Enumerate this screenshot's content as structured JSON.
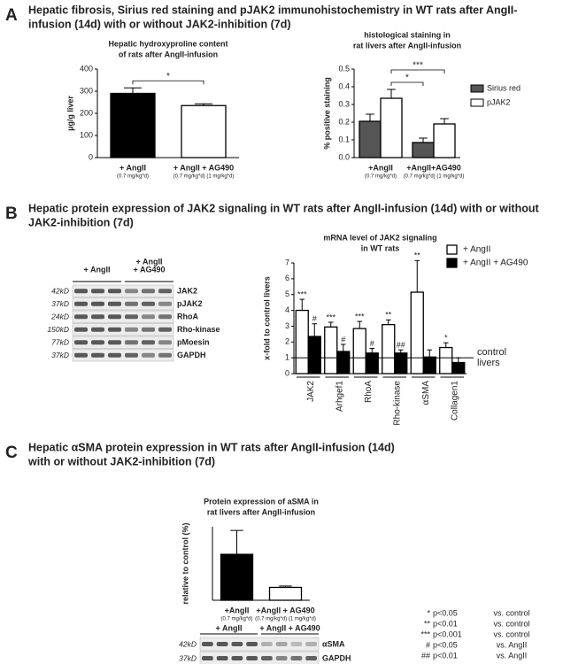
{
  "headings": [
    {
      "letter": "A",
      "lines": [
        "Hepatic fibrosis, Sirius red staining and pJAK2 immunohistochemistry in WT rats after AngII-",
        "infusion (14d) with or without JAK2-inhibition (7d)"
      ]
    },
    {
      "letter": "B",
      "lines": [
        "Hepatic protein expression of JAK2 signaling in WT rats after AngII-infusion (14d) with or without",
        "JAK2-inhibition (7d)"
      ]
    },
    {
      "letter": "C",
      "lines": [
        "Hepatic αSMA protein expression in WT rats after AngII-infusion (14d)",
        "with or without JAK2-inhibition (7d)"
      ]
    }
  ],
  "chart_data": [
    {
      "type": "bar",
      "title": [
        "Hepatic hydroxyproline content",
        "of rats after AngII-infusion"
      ],
      "ylabel": "µg/g liver",
      "categories": [
        "+ AngII",
        "+ AngII + AG490"
      ],
      "category_notes": [
        "(0.7 mg/kg*d)",
        "(0.7 mg/kg*d)  (1 mg/kg*d)"
      ],
      "values": [
        290,
        235
      ],
      "errors": [
        25,
        8
      ],
      "colors": [
        "#000000",
        "#ffffff"
      ],
      "ylim": [
        0,
        400
      ],
      "yticks": [
        0,
        100,
        200,
        300,
        400
      ],
      "annotations": [
        "*"
      ]
    },
    {
      "type": "bar",
      "title": [
        "histological staining in",
        "rat livers after AngII-infusion"
      ],
      "ylabel": "% positive staining",
      "categories": [
        "+AngII",
        "+AngII+AG490"
      ],
      "category_notes": [
        "(0.7 mg/kg*d)",
        "(0.7 mg/kg*d) (1 mg/kg*d)"
      ],
      "series": [
        {
          "name": "Sirius red",
          "color": "#555555",
          "values": [
            0.205,
            0.085
          ],
          "errors": [
            0.04,
            0.025
          ]
        },
        {
          "name": "pJAK2",
          "color": "#ffffff",
          "values": [
            0.335,
            0.19
          ],
          "errors": [
            0.05,
            0.03
          ]
        }
      ],
      "ylim": [
        0,
        0.5
      ],
      "yticks": [
        {
          "value": 0,
          "label": "0.0"
        },
        0.1,
        0.2,
        0.3,
        0.4,
        0.5
      ],
      "annotations": [
        "*",
        "***"
      ]
    },
    {
      "type": "bar",
      "title": [
        "mRNA level of JAK2 signaling",
        "in WT rats"
      ],
      "ylabel": "x-fold to control livers",
      "categories": [
        "JAK2",
        "Arhgef1",
        "RhoA",
        "Rho-kinase",
        "αSMA",
        "Collagen1"
      ],
      "series": [
        {
          "name": "+ AngII",
          "color": "#ffffff",
          "values": [
            4.0,
            2.95,
            2.85,
            3.1,
            5.15,
            1.65
          ],
          "errors": [
            0.7,
            0.3,
            0.45,
            0.3,
            2.0,
            0.3
          ],
          "value_labels": [
            "***",
            "***",
            "***",
            "**",
            "**",
            "*"
          ]
        },
        {
          "name": "+ AngII + AG490",
          "color": "#000000",
          "values": [
            2.35,
            1.4,
            1.3,
            1.3,
            1.05,
            0.7
          ],
          "errors": [
            0.8,
            0.45,
            0.3,
            0.2,
            0.45,
            0.3
          ],
          "value_labels": [
            "#",
            "#",
            "#",
            "##",
            null,
            null
          ]
        }
      ],
      "ylim": [
        0,
        7
      ],
      "yticks": [
        0,
        1,
        2,
        3,
        4,
        5,
        6,
        7
      ],
      "reference": {
        "value": 1,
        "label": [
          "control",
          "livers"
        ]
      }
    },
    {
      "type": "bar",
      "title": [
        "Protein expression of aSMA in",
        "rat livers after AngII-infusion"
      ],
      "ylabel": "relative to control (%)",
      "categories": [
        "+AngII",
        "+AngII + AG490"
      ],
      "category_notes": [
        "(0.7 mg/kg*d)",
        "(0.7 mg/kg*d) (1 mg/kg*d)"
      ],
      "values": [
        100,
        28
      ],
      "errors": [
        52,
        3
      ],
      "colors": [
        "#000000",
        "#ffffff"
      ],
      "ylim": [
        0,
        160
      ]
    }
  ],
  "blots": [
    {
      "groups": [
        [
          "+ AngII"
        ],
        [
          "+ AngII",
          "+ AG490"
        ]
      ],
      "rows": [
        [
          "42kD",
          "JAK2"
        ],
        [
          "37kD",
          "pJAK2"
        ],
        [
          "24kD",
          "RhoA"
        ],
        [
          "150kD",
          "Rho-kinase"
        ],
        [
          "77kD",
          "pMoesin"
        ],
        [
          "37kD",
          "GAPDH"
        ]
      ]
    },
    {
      "groups": [
        [
          "+ AngII"
        ],
        [
          "+ AngII + AG490"
        ]
      ],
      "rows": [
        [
          "42kD",
          "αSMA"
        ],
        [
          "37kD",
          "GAPDH"
        ]
      ]
    }
  ],
  "footnotes": [
    [
      "*",
      "p<0.05",
      "vs. control"
    ],
    [
      "**",
      "p<0.01",
      "vs. control"
    ],
    [
      "***",
      "p<0.001",
      "vs. control"
    ],
    [
      "#",
      "p<0.05",
      "vs.  AngII"
    ],
    [
      "##",
      "p<0.01",
      "vs.  AngII"
    ]
  ]
}
